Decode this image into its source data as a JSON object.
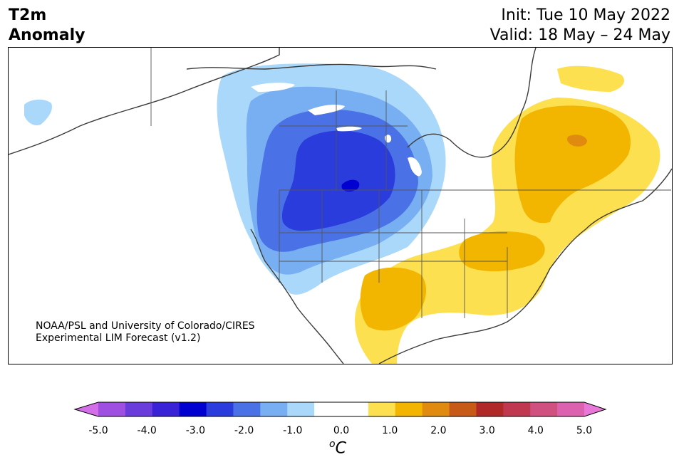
{
  "title": {
    "line1": "T2m",
    "line2": "Anomaly"
  },
  "dates": {
    "init": "Init: Tue 10 May 2022",
    "valid": "Valid: 18 May – 24 May"
  },
  "credit": {
    "line1": "NOAA/PSL and University of Colorado/CIRES",
    "line2": "Experimental LIM Forecast (v1.2)"
  },
  "colorbar": {
    "ticks": [
      "-5.0",
      "-4.0",
      "-3.0",
      "-2.0",
      "-1.0",
      "0.0",
      "1.0",
      "2.0",
      "3.0",
      "4.0",
      "5.0"
    ],
    "unit_sup": "o",
    "unit": "C",
    "colors": [
      "#d46ee8",
      "#a050e0",
      "#6a3cdc",
      "#3a22d6",
      "#0000d0",
      "#2a3cdc",
      "#4a72e6",
      "#78aef2",
      "#aad8fa",
      "#ffffff",
      "#ffffff",
      "#fde050",
      "#f2b600",
      "#e08a10",
      "#c85a18",
      "#b02828",
      "#c03850",
      "#d05080",
      "#dc62b0",
      "#e878d8"
    ]
  },
  "map_colors": {
    "cold_1": "#aad8fa",
    "cold_2": "#78aef2",
    "cold_3": "#4a72e6",
    "cold_4": "#2a3cdc",
    "cold_5": "#0000d0",
    "warm_1": "#fde050",
    "warm_2": "#f2b600",
    "warm_3": "#e08a10",
    "coast": "#3a3a3a"
  }
}
